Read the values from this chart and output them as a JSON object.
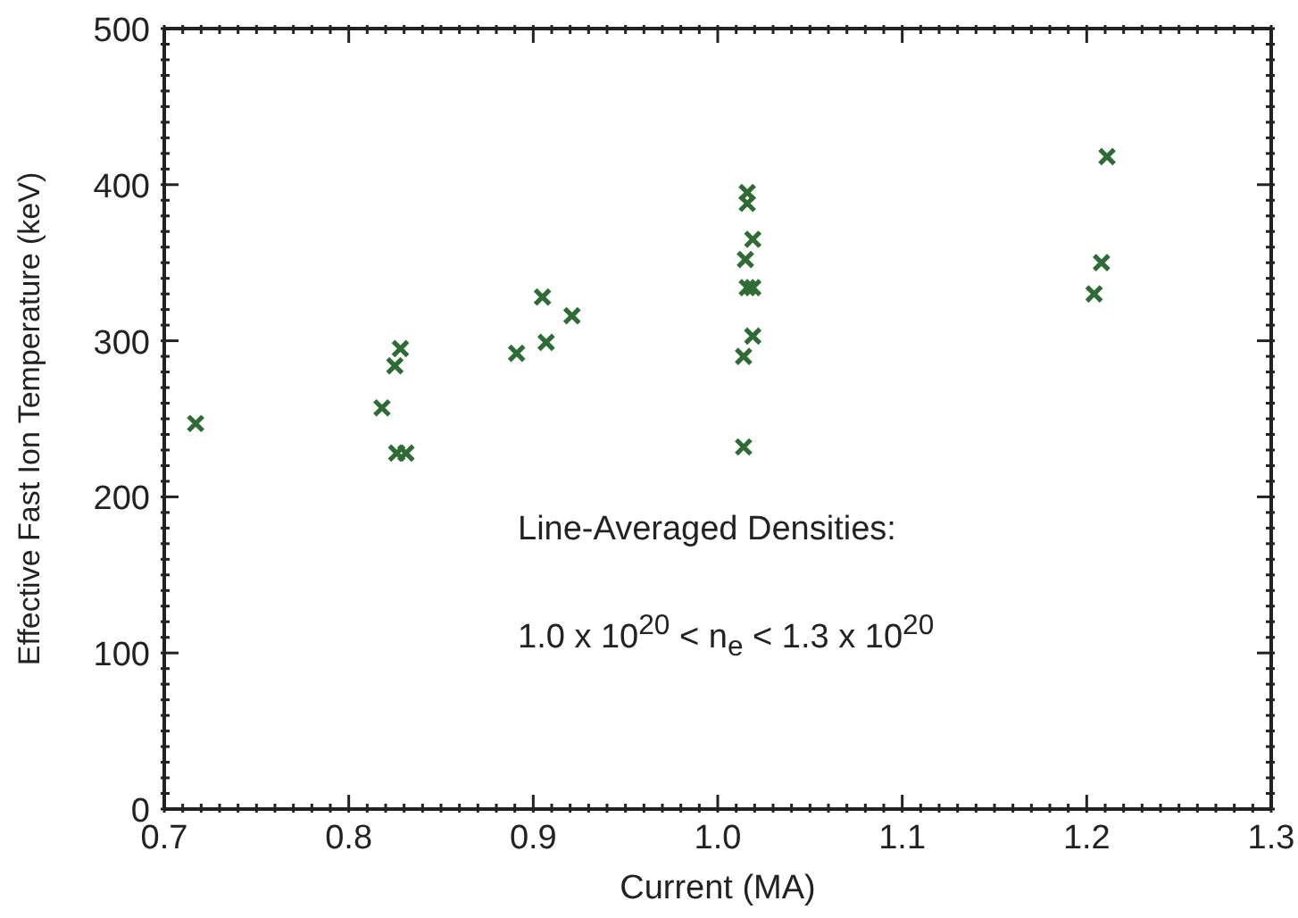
{
  "chart_data": {
    "type": "scatter",
    "xlabel": "Current (MA)",
    "ylabel": "Effective Fast Ion Temperature (keV)",
    "annotations": [
      "Line-Averaged Densities:",
      "1.0 x 10$^{20}$ < n$_{e}$ < 1.3 x 10$^{20}$"
    ],
    "series": [
      {
        "color": "#2e6b35",
        "x": [
          0.717,
          0.818,
          0.825,
          0.828,
          0.826,
          0.831,
          0.891,
          0.905,
          0.907,
          0.921,
          1.014,
          1.014,
          1.019,
          1.016,
          1.019,
          1.015,
          1.019,
          1.016,
          1.016,
          1.204,
          1.208,
          1.211
        ],
        "values": [
          247,
          257,
          284,
          295,
          228,
          228,
          292,
          328,
          299,
          316,
          232,
          290,
          303,
          334,
          334,
          352,
          365,
          388,
          395,
          330,
          350,
          418
        ]
      }
    ],
    "marker": "cross",
    "xlim": [
      0.7,
      1.3
    ],
    "ylim": [
      0,
      500
    ],
    "xticks": [
      0.7,
      {
        "value": 0.71,
        "label": null
      },
      {
        "value": 0.72,
        "label": null
      },
      {
        "value": 0.73,
        "label": null
      },
      {
        "value": 0.74,
        "label": null
      },
      {
        "value": 0.75,
        "label": null
      },
      {
        "value": 0.76,
        "label": null
      },
      {
        "value": 0.77,
        "label": null
      },
      {
        "value": 0.78,
        "label": null
      },
      {
        "value": 0.79,
        "label": null
      },
      0.8,
      {
        "value": 0.81,
        "label": null
      },
      {
        "value": 0.82,
        "label": null
      },
      {
        "value": 0.83,
        "label": null
      },
      {
        "value": 0.84,
        "label": null
      },
      {
        "value": 0.85,
        "label": null
      },
      {
        "value": 0.86,
        "label": null
      },
      {
        "value": 0.87,
        "label": null
      },
      {
        "value": 0.88,
        "label": null
      },
      {
        "value": 0.89,
        "label": null
      },
      0.9,
      {
        "value": 0.91,
        "label": null
      },
      {
        "value": 0.92,
        "label": null
      },
      {
        "value": 0.93,
        "label": null
      },
      {
        "value": 0.94,
        "label": null
      },
      {
        "value": 0.95,
        "label": null
      },
      {
        "value": 0.96,
        "label": null
      },
      {
        "value": 0.97,
        "label": null
      },
      {
        "value": 0.98,
        "label": null
      },
      {
        "value": 0.99,
        "label": null
      },
      {
        "value": 1,
        "label": "1.0"
      },
      {
        "value": 1.01,
        "label": null
      },
      {
        "value": 1.02,
        "label": null
      },
      {
        "value": 1.03,
        "label": null
      },
      {
        "value": 1.04,
        "label": null
      },
      {
        "value": 1.05,
        "label": null
      },
      {
        "value": 1.06,
        "label": null
      },
      {
        "value": 1.07,
        "label": null
      },
      {
        "value": 1.08,
        "label": null
      },
      {
        "value": 1.09,
        "label": null
      },
      1.1,
      {
        "value": 1.11,
        "label": null
      },
      {
        "value": 1.12,
        "label": null
      },
      {
        "value": 1.13,
        "label": null
      },
      {
        "value": 1.14,
        "label": null
      },
      {
        "value": 1.15,
        "label": null
      },
      {
        "value": 1.16,
        "label": null
      },
      {
        "value": 1.17,
        "label": null
      },
      {
        "value": 1.18,
        "label": null
      },
      {
        "value": 1.19,
        "label": null
      },
      1.2,
      {
        "value": 1.21,
        "label": null
      },
      {
        "value": 1.22,
        "label": null
      },
      {
        "value": 1.23,
        "label": null
      },
      {
        "value": 1.24,
        "label": null
      },
      {
        "value": 1.25,
        "label": null
      },
      {
        "value": 1.26,
        "label": null
      },
      {
        "value": 1.27,
        "label": null
      },
      {
        "value": 1.28,
        "label": null
      },
      {
        "value": 1.29,
        "label": null
      },
      1.3
    ],
    "yticks": [
      0,
      {
        "value": 10,
        "label": null
      },
      {
        "value": 20,
        "label": null
      },
      {
        "value": 30,
        "label": null
      },
      {
        "value": 40,
        "label": null
      },
      {
        "value": 50,
        "label": null
      },
      {
        "value": 60,
        "label": null
      },
      {
        "value": 70,
        "label": null
      },
      {
        "value": 80,
        "label": null
      },
      {
        "value": 90,
        "label": null
      },
      100,
      {
        "value": 110,
        "label": null
      },
      {
        "value": 120,
        "label": null
      },
      {
        "value": 130,
        "label": null
      },
      {
        "value": 140,
        "label": null
      },
      {
        "value": 150,
        "label": null
      },
      {
        "value": 160,
        "label": null
      },
      {
        "value": 170,
        "label": null
      },
      {
        "value": 180,
        "label": null
      },
      {
        "value": 190,
        "label": null
      },
      200,
      {
        "value": 210,
        "label": null
      },
      {
        "value": 220,
        "label": null
      },
      {
        "value": 230,
        "label": null
      },
      {
        "value": 240,
        "label": null
      },
      {
        "value": 250,
        "label": null
      },
      {
        "value": 260,
        "label": null
      },
      {
        "value": 270,
        "label": null
      },
      {
        "value": 280,
        "label": null
      },
      {
        "value": 290,
        "label": null
      },
      300,
      {
        "value": 310,
        "label": null
      },
      {
        "value": 320,
        "label": null
      },
      {
        "value": 330,
        "label": null
      },
      {
        "value": 340,
        "label": null
      },
      {
        "value": 350,
        "label": null
      },
      {
        "value": 360,
        "label": null
      },
      {
        "value": 370,
        "label": null
      },
      {
        "value": 380,
        "label": null
      },
      {
        "value": 390,
        "label": null
      },
      400,
      {
        "value": 410,
        "label": null
      },
      {
        "value": 420,
        "label": null
      },
      {
        "value": 430,
        "label": null
      },
      {
        "value": 440,
        "label": null
      },
      {
        "value": 450,
        "label": null
      },
      {
        "value": 460,
        "label": null
      },
      {
        "value": 470,
        "label": null
      },
      {
        "value": 480,
        "label": null
      },
      {
        "value": 490,
        "label": null
      },
      500
    ]
  }
}
